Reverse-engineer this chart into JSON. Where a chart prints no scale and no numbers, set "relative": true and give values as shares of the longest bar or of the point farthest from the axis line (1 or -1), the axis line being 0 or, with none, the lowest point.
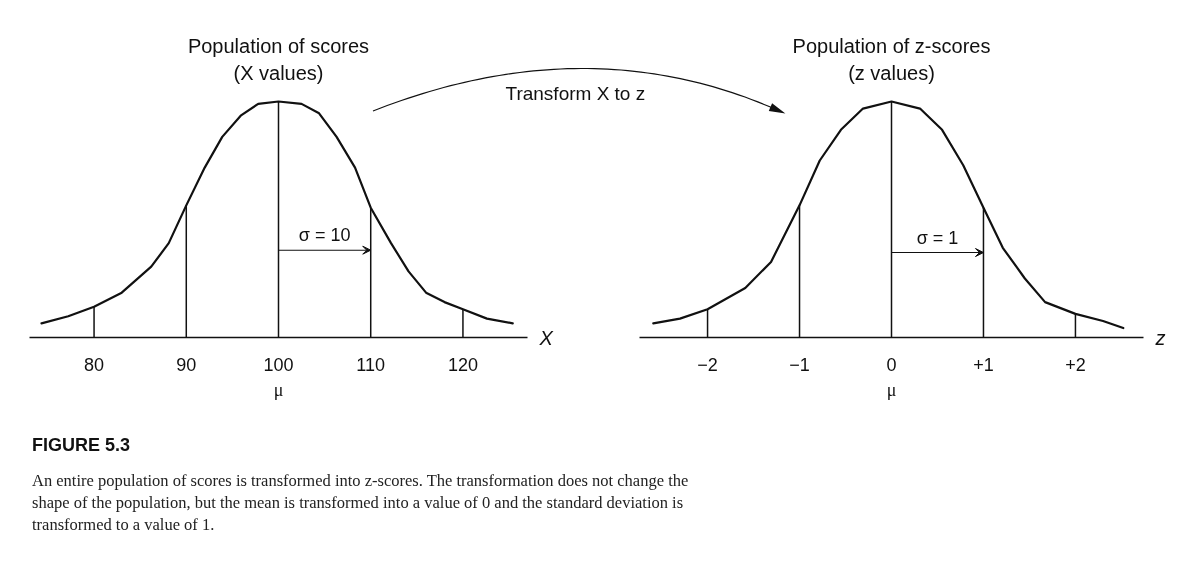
{
  "chart_data": [
    {
      "type": "line",
      "title": "Population of scores",
      "subtitle": "(X values)",
      "xlabel": "X",
      "relative": true,
      "tick_labels": "x",
      "x": [
        74.3,
        77.2,
        80,
        83,
        86.2,
        88.1,
        90,
        92,
        93.9,
        95.9,
        97.8,
        100,
        102.5,
        104.4,
        106.3,
        108.3,
        110,
        112.2,
        114.1,
        116,
        118,
        120,
        122.6,
        125.4
      ],
      "values": [
        0.06,
        0.09,
        0.13,
        0.19,
        0.3,
        0.4,
        0.56,
        0.72,
        0.85,
        0.94,
        0.99,
        1,
        0.99,
        0.95,
        0.85,
        0.72,
        0.55,
        0.4,
        0.28,
        0.19,
        0.15,
        0.12,
        0.08,
        0.06
      ],
      "color": "#111111",
      "xlim": [
        73,
        127
      ],
      "xticks": [
        80,
        90,
        100,
        110,
        120
      ],
      "ref_lines": [
        {
          "axis": "x",
          "value": 80
        },
        {
          "axis": "x",
          "value": 90
        },
        {
          "axis": "x",
          "value": 100,
          "label": "μ"
        },
        {
          "axis": "x",
          "value": 110
        },
        {
          "axis": "x",
          "value": 120
        }
      ],
      "annotations": [
        {
          "text": "σ = 10",
          "x": 110,
          "y": 0.37
        },
        "Transform X to z",
        "FIGURE 5.3",
        "An entire population of scores is transformed into z-scores. The transformation does not change the shape of the population, but the mean is transformed into a value of 0 and the standard deviation is transformed to a value of 1."
      ]
    },
    {
      "type": "line",
      "title": "Population of z-scores",
      "subtitle": "(z values)",
      "xlabel": "z",
      "relative": true,
      "tick_labels": "x",
      "x": [
        -2.59,
        -2.3,
        -2,
        -1.59,
        -1.31,
        -1,
        -0.78,
        -0.55,
        -0.31,
        0,
        0.31,
        0.55,
        0.78,
        1,
        1.21,
        1.45,
        1.67,
        2,
        2.3,
        2.52
      ],
      "values": [
        0.06,
        0.08,
        0.12,
        0.21,
        0.32,
        0.56,
        0.75,
        0.88,
        0.97,
        1,
        0.97,
        0.88,
        0.73,
        0.55,
        0.38,
        0.25,
        0.15,
        0.1,
        0.07,
        0.04
      ],
      "color": "#111111",
      "xlim": [
        -2.74,
        2.74
      ],
      "xticks": [
        {
          "value": -2,
          "label": "−2"
        },
        {
          "value": -1,
          "label": "−1"
        },
        0,
        {
          "value": 1,
          "label": "+1"
        },
        {
          "value": 2,
          "label": "+2"
        }
      ],
      "ref_lines": [
        {
          "axis": "x",
          "value": -2
        },
        {
          "axis": "x",
          "value": -1
        },
        {
          "axis": "x",
          "value": 0,
          "label": "μ"
        },
        {
          "axis": "x",
          "value": 1
        },
        {
          "axis": "x",
          "value": 2
        }
      ],
      "annotations": [
        {
          "text": "σ = 1",
          "x": 1,
          "y": 0.36
        }
      ]
    }
  ]
}
